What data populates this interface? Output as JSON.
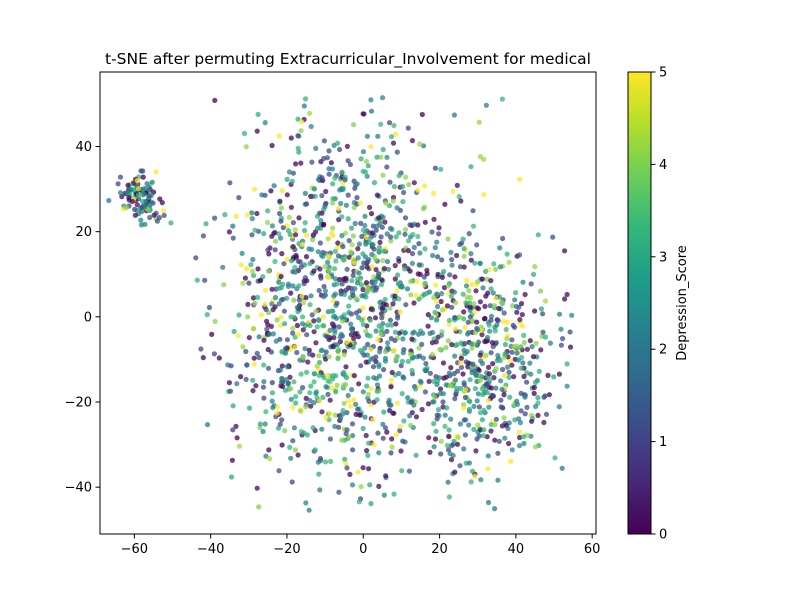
{
  "chart_data": {
    "type": "scatter",
    "title": "t-SNE after permuting Extracurricular_Involvement for medical",
    "xlabel": "",
    "ylabel": "",
    "xlim": [
      -69,
      61
    ],
    "ylim": [
      -51,
      57.5
    ],
    "x_ticks": [
      -60,
      -40,
      -20,
      0,
      20,
      40,
      60
    ],
    "y_ticks": [
      -40,
      -20,
      0,
      20,
      40
    ],
    "grid": false,
    "colorbar": {
      "label": "Depression_Score",
      "range": [
        0,
        5
      ],
      "ticks": [
        0,
        1,
        2,
        3,
        4,
        5
      ],
      "colormap": "viridis",
      "colors": [
        "#440154",
        "#482878",
        "#3e4989",
        "#31688e",
        "#26828e",
        "#1f9e89",
        "#35b779",
        "#6ece58",
        "#b5de2b",
        "#fde725"
      ]
    },
    "marker_alpha": 0.75,
    "clusters": [
      {
        "center": [
          -58,
          28.5
        ],
        "spread": [
          3.0,
          3.0
        ],
        "count": 110
      },
      {
        "center": [
          -3,
          2
        ],
        "spread": [
          17,
          20
        ],
        "count": 1350,
        "bounds": {
          "x": [
            -44,
            48
          ],
          "y": [
            -46,
            52
          ]
        }
      },
      {
        "center": [
          32,
          -12
        ],
        "spread": [
          10,
          13
        ],
        "count": 420,
        "bounds": {
          "x": [
            18,
            56
          ],
          "y": [
            -40,
            20
          ]
        }
      }
    ]
  }
}
